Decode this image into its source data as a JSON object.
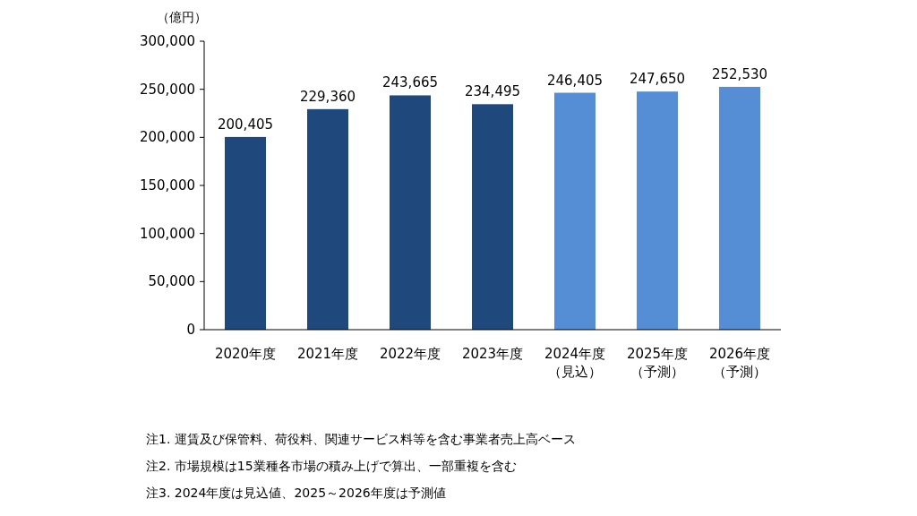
{
  "chart_data": {
    "type": "bar",
    "ylabel": "（億円）",
    "categories": [
      "2020年度",
      "2021年度",
      "2022年度",
      "2023年度",
      "2024年度（見込）",
      "2025年度（予測）",
      "2026年度（予測）"
    ],
    "values": [
      200405,
      229360,
      243665,
      234495,
      246405,
      247650,
      252530
    ],
    "colors": [
      "#1f487c",
      "#1f487c",
      "#1f487c",
      "#1f487c",
      "#558ed5",
      "#558ed5",
      "#558ed5"
    ],
    "value_labels": [
      "200,405",
      "229,360",
      "243,665",
      "234,495",
      "246,405",
      "247,650",
      "252,530"
    ],
    "ylim": [
      0,
      300000
    ],
    "yticks": [
      0,
      {
        "value": 50000,
        "label": "50,000"
      },
      {
        "value": 100000,
        "label": "100,000"
      },
      {
        "value": 150000,
        "label": "150,000"
      },
      {
        "value": 200000,
        "label": "200,000"
      },
      {
        "value": 250000,
        "label": "250,000"
      },
      {
        "value": 300000,
        "label": "300,000"
      }
    ],
    "grid": false,
    "annotations": [
      "注1.  運賃及び保管料、荷役料、関連サービス料等を含む事業者売上高ベース",
      "注2.  市場規模は15業種各市場の積み上げで算出、一部重複を含む",
      "注3.  2024年度は見込値、2025～2026年度は予測値"
    ]
  }
}
